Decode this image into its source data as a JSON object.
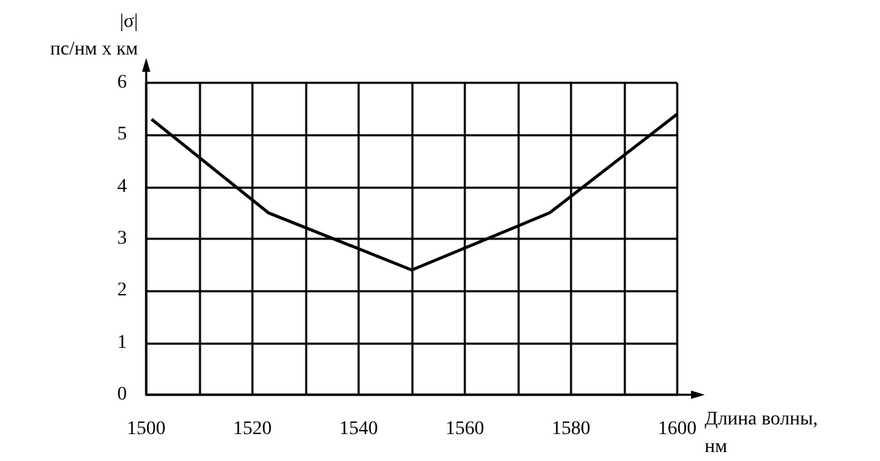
{
  "chart_data": {
    "type": "line",
    "xlabel": "Длина волны,\nнм",
    "ylabel": "|σ|\nпс/нм x км",
    "x": [
      1501,
      1523,
      1550,
      1576,
      1600
    ],
    "series": [
      {
        "color": "#000000",
        "values": [
          5.3,
          3.5,
          2.4,
          3.5,
          5.4
        ]
      }
    ],
    "xlim": [
      1500,
      1600
    ],
    "xticks": [
      1500,
      {
        "value": 1510,
        "label": null
      },
      1520,
      {
        "value": 1530,
        "label": null
      },
      1540,
      {
        "value": 1550,
        "label": null
      },
      1560,
      {
        "value": 1570,
        "label": null
      },
      1580,
      {
        "value": 1590,
        "label": null
      },
      1600
    ],
    "ylim": [
      0,
      6
    ],
    "yticks": [
      0,
      1,
      2,
      3,
      4,
      5,
      6
    ],
    "grid": true,
    "marker": "none",
    "line_style": "solid"
  }
}
